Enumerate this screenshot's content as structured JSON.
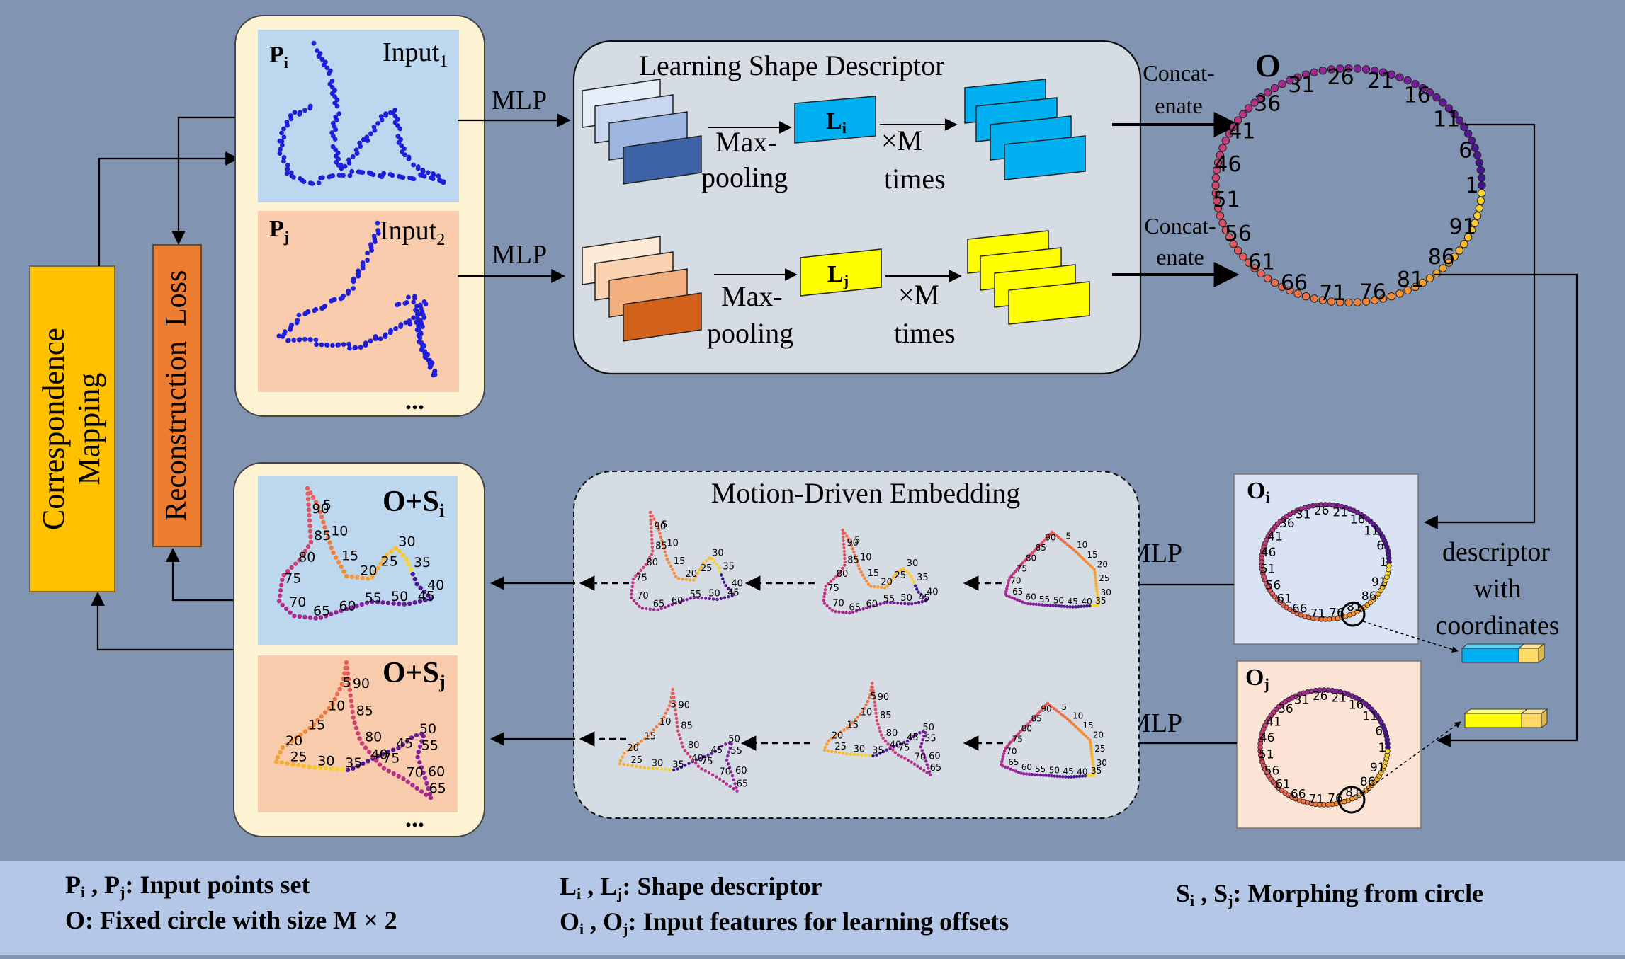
{
  "left_bars": {
    "correspondence": "Correspondence Mapping",
    "correspondence_line1": "Correspondence",
    "correspondence_line2": "Mapping",
    "reconstruction": "Reconstruction  Loss"
  },
  "input_panel": {
    "pi_label": "P",
    "pi_sub": "i",
    "pj_label": "P",
    "pj_sub": "j",
    "input1": "Input",
    "input1_sub": "1",
    "input2": "Input",
    "input2_sub": "2",
    "more": "..."
  },
  "mlp_label": "MLP",
  "shape_box": {
    "title": "Learning Shape Descriptor",
    "maxpool_1": "Max-",
    "maxpool_2": "pooling",
    "li": "L",
    "li_sub": "i",
    "lj": "L",
    "lj_sub": "j",
    "times_1": "×M",
    "times_2": "times",
    "concat_1": "Concat-",
    "concat_2": "enate"
  },
  "circle": {
    "label": "O",
    "ticks": [
      "1",
      "6",
      "11",
      "16",
      "21",
      "26",
      "31",
      "36",
      "41",
      "46",
      "51",
      "56",
      "61",
      "66",
      "71",
      "76",
      "81",
      "86",
      "91"
    ]
  },
  "small_circles": {
    "oi": "O",
    "oi_sub": "i",
    "oj": "O",
    "oj_sub": "j"
  },
  "descriptor_text": [
    "descriptor",
    "with",
    "coordinates"
  ],
  "motion_box": {
    "title": "Motion-Driven Embedding"
  },
  "output_panel": {
    "osi": "O+S",
    "osi_sub": "i",
    "osj": "O+S",
    "osj_sub": "j",
    "more": "..."
  },
  "shape_ticks": [
    "5",
    "10",
    "15",
    "20",
    "25",
    "30",
    "35",
    "40",
    "45",
    "50",
    "55",
    "60",
    "65",
    "70",
    "75",
    "80",
    "85",
    "90"
  ],
  "legend": {
    "row1_col1": "P",
    "row1_col1_sub_a": "i",
    "row1_col1_sub_b": "j",
    "row1_col1_text": "Pi , Pj : Input points set",
    "row2_col1_text": "O: Fixed circle with size M × 2",
    "row1_col2_text": "Li , Lj : Shape descriptor",
    "row2_col2_text": "Oi , Oj : Input features for learning offsets",
    "col3_text": "Si , Sj : Morphing from circle",
    "items": [
      {
        "sym": "P",
        "sub1": "i",
        "sym2": "P",
        "sub2": "j",
        "desc": ": Input points set"
      },
      {
        "sym": "O: Fixed circle with size M × 2"
      },
      {
        "sym": "L",
        "sub1": "i",
        "sym2": "L",
        "sub2": "j",
        "desc": ": Shape descriptor"
      },
      {
        "sym": "O",
        "sub1": "i",
        "sym2": "O",
        "sub2": "j",
        "desc": ": Input features for learning offsets"
      },
      {
        "sym": "S",
        "sub1": "i",
        "sym2": "S",
        "sub2": "j",
        "desc": ": Morphing from circle"
      }
    ]
  },
  "colors": {
    "background": "#8194b1",
    "panel_cream": "#fdf3d2",
    "input_blue": "#bdd7ee",
    "input_peach": "#f7cbac",
    "box_gray": "#d6dce4",
    "correspondence": "#ffc000",
    "reconstruction": "#ed7d31",
    "legend_bar": "#b4c7e7",
    "cyan": "#00b0f0",
    "yellow": "#ffff00",
    "point_blue": "#1f1fd8"
  }
}
